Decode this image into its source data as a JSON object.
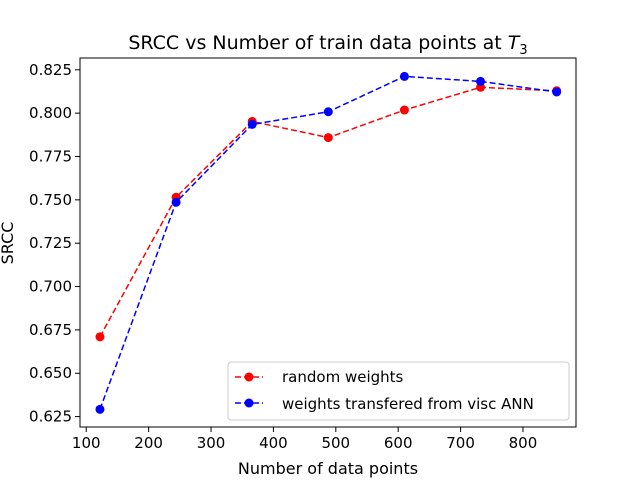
{
  "chart_data": {
    "type": "line",
    "title": "SRCC vs Number of train data points at ",
    "title_math": "T",
    "title_math_sub": "3",
    "xlabel": "Number of data points",
    "ylabel": "SRCC",
    "xlim": [
      90,
      885
    ],
    "ylim": [
      0.619,
      0.8318
    ],
    "xticks": [
      100,
      200,
      300,
      400,
      500,
      600,
      700,
      800
    ],
    "yticks": [
      0.625,
      0.65,
      0.675,
      0.7,
      0.725,
      0.75,
      0.775,
      0.8,
      0.825
    ],
    "ytick_labels": [
      "0.625",
      "0.650",
      "0.675",
      "0.700",
      "0.725",
      "0.750",
      "0.775",
      "0.800",
      "0.825"
    ],
    "x": [
      122,
      244,
      366,
      488,
      610,
      732,
      854
    ],
    "series": [
      {
        "name": "random weights",
        "color": "#ff0000",
        "values": [
          0.671,
          0.7515,
          0.7952,
          0.7859,
          0.8018,
          0.8149,
          0.8129
        ]
      },
      {
        "name": "weights transfered from visc ANN",
        "color": "#0000ff",
        "values": [
          0.6292,
          0.7486,
          0.7935,
          0.8008,
          0.8212,
          0.8183,
          0.8122
        ]
      }
    ],
    "legend_position": "lower-right",
    "grid": false,
    "line_style": "dashed",
    "marker": "circle"
  }
}
